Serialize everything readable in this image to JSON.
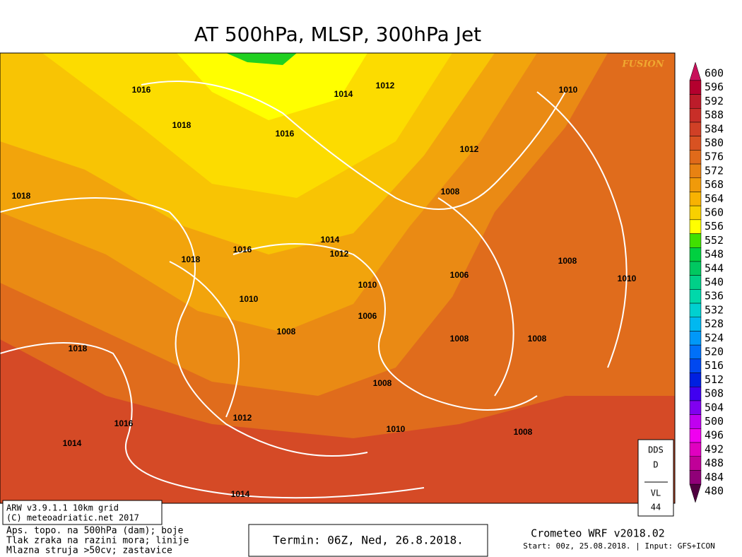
{
  "title": "AT 500hPa, MLSP, 300hPa Jet",
  "watermark": "FUSION",
  "colorbar": {
    "values": [
      600,
      596,
      592,
      588,
      584,
      580,
      576,
      572,
      568,
      564,
      560,
      556,
      552,
      548,
      544,
      540,
      536,
      532,
      528,
      524,
      520,
      516,
      512,
      508,
      504,
      500,
      496,
      492,
      488,
      484,
      480
    ],
    "colors": [
      "#c8105a",
      "#b4002e",
      "#bc1c2a",
      "#c82e28",
      "#d04026",
      "#d85222",
      "#e06a1a",
      "#e88212",
      "#f09a0a",
      "#f8b202",
      "#f8d000",
      "#ffff00",
      "#40e000",
      "#00d040",
      "#00c860",
      "#00d088",
      "#00d8aa",
      "#00d0d0",
      "#00b8f0",
      "#0098f8",
      "#0070f8",
      "#0048f0",
      "#0020e0",
      "#4000f0",
      "#8000f0",
      "#c000f0",
      "#f000f0",
      "#e000c0",
      "#c00098",
      "#900078",
      "#500040"
    ]
  },
  "isobar_labels": [
    1016,
    1014,
    1012,
    1010,
    1018,
    1016,
    1012,
    1018,
    1008,
    1014,
    1016,
    1012,
    1018,
    1008,
    1006,
    1010,
    1010,
    1010,
    1006,
    1008,
    1008,
    1008,
    1018,
    1008,
    1012,
    1016,
    1010,
    1014,
    1008,
    1014
  ],
  "info_box": [
    "ARW v3.9.1.1 10km grid",
    "(C) meteoadriatic.net 2017"
  ],
  "legend_lines": [
    "Aps. topo. na 500hPa (dam); boje",
    "Tlak zraka na razini mora; linije",
    "Mlazna struja >50cv; zastavice"
  ],
  "termin": "Termin: 06Z, Ned, 26.8.2018.",
  "model": "Crometeo WRF v2018.02",
  "start": "Start: 00z, 25.08.2018. | Input: GFS+ICON",
  "dds_box": [
    "DDS",
    "D",
    "VL",
    "44"
  ]
}
